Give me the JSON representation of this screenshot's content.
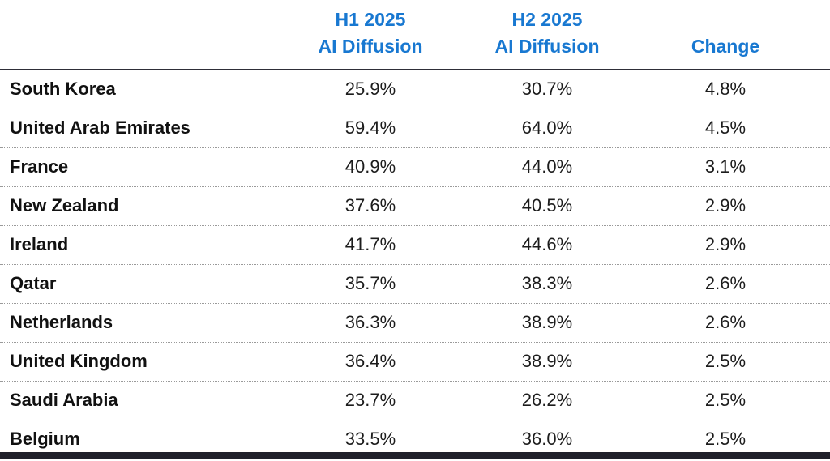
{
  "colors": {
    "header_text": "#1878d1",
    "header_rule": "#2e2e38",
    "row_divider": "#9a9a9a",
    "bottom_bar": "#20212b",
    "body_text": "#1c1c1c"
  },
  "chart_data": {
    "type": "table",
    "title": "",
    "columns": [
      {
        "id": "country",
        "line1": "",
        "line2": ""
      },
      {
        "id": "h1",
        "line1": "H1 2025",
        "line2": "AI Diffusion"
      },
      {
        "id": "h2",
        "line1": "H2 2025",
        "line2": "AI Diffusion"
      },
      {
        "id": "change",
        "line1": "",
        "line2": "Change"
      }
    ],
    "rows": [
      {
        "country": "South Korea",
        "h1": "25.9%",
        "h2": "30.7%",
        "change": "4.8%"
      },
      {
        "country": "United Arab Emirates",
        "h1": "59.4%",
        "h2": "64.0%",
        "change": "4.5%"
      },
      {
        "country": "France",
        "h1": "40.9%",
        "h2": "44.0%",
        "change": "3.1%"
      },
      {
        "country": "New Zealand",
        "h1": "37.6%",
        "h2": "40.5%",
        "change": "2.9%"
      },
      {
        "country": "Ireland",
        "h1": "41.7%",
        "h2": "44.6%",
        "change": "2.9%"
      },
      {
        "country": "Qatar",
        "h1": "35.7%",
        "h2": "38.3%",
        "change": "2.6%"
      },
      {
        "country": "Netherlands",
        "h1": "36.3%",
        "h2": "38.9%",
        "change": "2.6%"
      },
      {
        "country": "United Kingdom",
        "h1": "36.4%",
        "h2": "38.9%",
        "change": "2.5%"
      },
      {
        "country": "Saudi Arabia",
        "h1": "23.7%",
        "h2": "26.2%",
        "change": "2.5%"
      },
      {
        "country": "Belgium",
        "h1": "33.5%",
        "h2": "36.0%",
        "change": "2.5%"
      }
    ]
  }
}
